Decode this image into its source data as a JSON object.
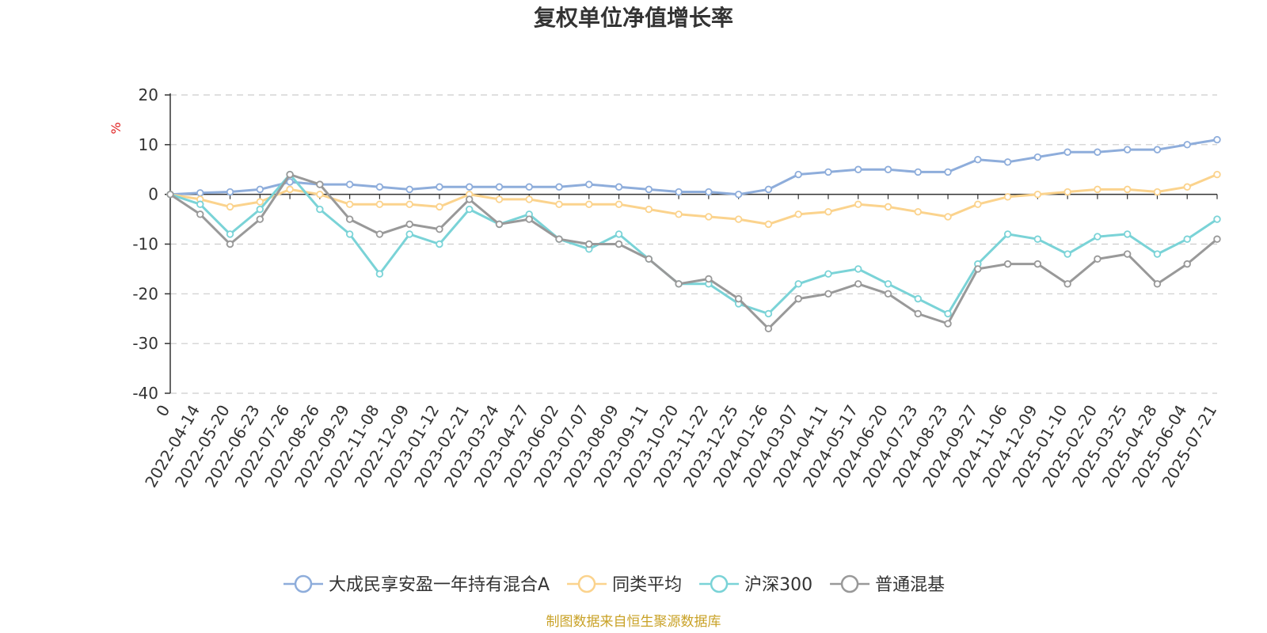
{
  "chart_data": {
    "type": "line",
    "title": "复权单位净值增长率",
    "ylabel": "%",
    "ylim": [
      -40,
      20
    ],
    "yticks": [
      20,
      10,
      0,
      -10,
      -20,
      -30,
      -40
    ],
    "grid": true,
    "legend_position": "bottom",
    "x_labels": [
      "0",
      "2022-04-14",
      "2022-05-20",
      "2022-06-23",
      "2022-07-26",
      "2022-08-26",
      "2022-09-29",
      "2022-11-08",
      "2022-12-09",
      "2023-01-12",
      "2023-02-21",
      "2023-03-24",
      "2023-04-27",
      "2023-06-02",
      "2023-07-07",
      "2023-08-09",
      "2023-09-11",
      "2023-10-20",
      "2023-11-22",
      "2023-12-25",
      "2024-01-26",
      "2024-03-07",
      "2024-04-11",
      "2024-05-17",
      "2024-06-20",
      "2024-07-23",
      "2024-08-23",
      "2024-09-27",
      "2024-11-06",
      "2024-12-09",
      "2025-01-10",
      "2025-02-20",
      "2025-03-25",
      "2025-04-28",
      "2025-06-04",
      "2025-07-21"
    ],
    "series": [
      {
        "name": "大成民享安盈一年持有混合A",
        "color": "#8eaddb",
        "values": [
          0,
          0.3,
          0.5,
          1.0,
          2.5,
          2.0,
          2.0,
          1.5,
          1.0,
          1.5,
          1.5,
          1.5,
          1.5,
          1.5,
          2.0,
          1.5,
          1.0,
          0.5,
          0.5,
          0,
          1.0,
          4.0,
          4.5,
          5.0,
          5.0,
          4.5,
          4.5,
          7.0,
          6.5,
          7.5,
          8.5,
          8.5,
          9.0,
          9.0,
          10.0,
          11.0
        ]
      },
      {
        "name": "同类平均",
        "color": "#fbd38d",
        "values": [
          0,
          -1.0,
          -2.5,
          -1.5,
          1.0,
          0,
          -2.0,
          -2.0,
          -2.0,
          -2.5,
          0,
          -1.0,
          -1.0,
          -2.0,
          -2.0,
          -2.0,
          -3.0,
          -4.0,
          -4.5,
          -5.0,
          -6.0,
          -4.0,
          -3.5,
          -2.0,
          -2.5,
          -3.5,
          -4.5,
          -2.0,
          -0.5,
          0,
          0.5,
          1.0,
          1.0,
          0.5,
          1.5,
          4.0
        ]
      },
      {
        "name": "沪深300",
        "color": "#7ad3d7",
        "values": [
          0,
          -2.0,
          -8.0,
          -3.0,
          4.0,
          -3.0,
          -8.0,
          -16.0,
          -8.0,
          -10.0,
          -3.0,
          -6.0,
          -4.0,
          -9.0,
          -11.0,
          -8.0,
          -13.0,
          -18.0,
          -18.0,
          -22.0,
          -24.0,
          -18.0,
          -16.0,
          -15.0,
          -18.0,
          -21.0,
          -24.0,
          -14.0,
          -8.0,
          -9.0,
          -12.0,
          -8.5,
          -8.0,
          -12.0,
          -9.0,
          -5.0
        ]
      },
      {
        "name": "普通混基",
        "color": "#999999",
        "values": [
          0,
          -4.0,
          -10.0,
          -5.0,
          4.0,
          2.0,
          -5.0,
          -8.0,
          -6.0,
          -7.0,
          -1.0,
          -6.0,
          -5.0,
          -9.0,
          -10.0,
          -10.0,
          -13.0,
          -18.0,
          -17.0,
          -21.0,
          -27.0,
          -21.0,
          -20.0,
          -18.0,
          -20.0,
          -24.0,
          -26.0,
          -15.0,
          -14.0,
          -14.0,
          -18.0,
          -13.0,
          -12.0,
          -18.0,
          -14.0,
          -9.0
        ]
      }
    ]
  },
  "footer": {
    "source": "制图数据来自恒生聚源数据库"
  }
}
